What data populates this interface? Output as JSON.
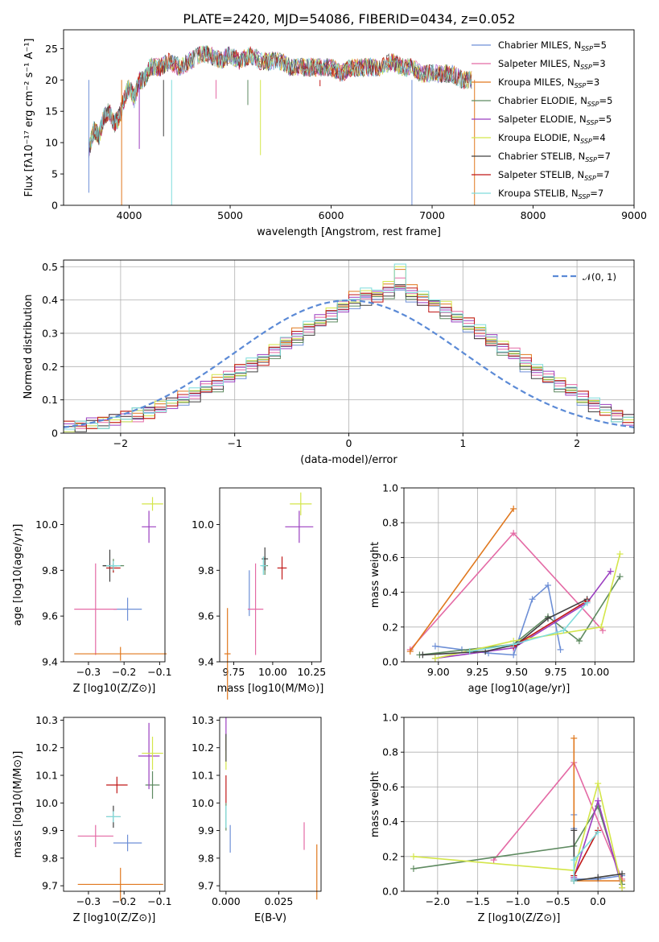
{
  "figure_title": "PLATE=2420, MJD=54086, FIBERID=0434, z=0.052",
  "models": [
    {
      "name": "Chabrier MILES, N_SSP=5",
      "color": "#6d8fd6"
    },
    {
      "name": "Salpeter MILES, N_SSP=3",
      "color": "#e46aa5"
    },
    {
      "name": "Kroupa MILES, N_SSP=3",
      "color": "#e0781e"
    },
    {
      "name": "Chabrier ELODIE, N_SSP=5",
      "color": "#5e8a60"
    },
    {
      "name": "Salpeter ELODIE, N_SSP=5",
      "color": "#9b3fc0"
    },
    {
      "name": "Kroupa ELODIE, N_SSP=4",
      "color": "#d4e64a"
    },
    {
      "name": "Chabrier STELIB, N_SSP=7",
      "color": "#404040"
    },
    {
      "name": "Salpeter STELIB, N_SSP=7",
      "color": "#c01818"
    },
    {
      "name": "Kroupa STELIB, N_SSP=7",
      "color": "#7fdcdc"
    }
  ],
  "chart_data": [
    {
      "type": "line",
      "id": "spectrum",
      "title": "PLATE=2420, MJD=54086, FIBERID=0434, z=0.052",
      "xlabel": "wavelength [Angstrom, rest frame]",
      "ylabel": "Flux [fλ10⁻¹⁷ erg cm⁻² s⁻¹ A⁻¹]",
      "xlim": [
        3350,
        9000
      ],
      "ylim": [
        0,
        28
      ],
      "xticks": [
        4000,
        5000,
        6000,
        7000,
        8000,
        9000
      ],
      "yticks": [
        0,
        5,
        10,
        15,
        20,
        25
      ],
      "grid": false,
      "legend": "upper right",
      "x": [
        3600,
        3650,
        3700,
        3750,
        3800,
        3850,
        3900,
        3950,
        4000,
        4050,
        4100,
        4150,
        4200,
        4300,
        4400,
        4500,
        4600,
        4700,
        4800,
        4900,
        5000,
        5100,
        5200,
        5300,
        5400,
        5500,
        5600,
        5700,
        5800,
        5900,
        6000,
        6100,
        6200,
        6300,
        6400,
        6500,
        6600,
        6700,
        6800,
        6900,
        7000,
        7100,
        7200,
        7300,
        7400
      ],
      "y": [
        9,
        12,
        11,
        14,
        15,
        13,
        14,
        17,
        19,
        17,
        20,
        20,
        22,
        22,
        23,
        22,
        23,
        24,
        24,
        23,
        24,
        23,
        24,
        23,
        23,
        23,
        22,
        22,
        22,
        22,
        22,
        21,
        22,
        22,
        22,
        22,
        23,
        22,
        22,
        21,
        21,
        21,
        21,
        20,
        20
      ],
      "dips": [
        {
          "x": 3600,
          "y": 2
        },
        {
          "x": 3925,
          "y": 0
        },
        {
          "x": 4100,
          "y": 9
        },
        {
          "x": 4340,
          "y": 11
        },
        {
          "x": 4420,
          "y": 0
        },
        {
          "x": 4860,
          "y": 17
        },
        {
          "x": 5175,
          "y": 16
        },
        {
          "x": 5300,
          "y": 8
        },
        {
          "x": 5890,
          "y": 19
        },
        {
          "x": 6800,
          "y": 0
        },
        {
          "x": 7420,
          "y": 0
        }
      ]
    },
    {
      "type": "bar",
      "id": "residuals",
      "xlabel": "(data-model)/error",
      "ylabel": "Normed distribution",
      "xlim": [
        -2.5,
        2.5
      ],
      "ylim": [
        0,
        0.52
      ],
      "xticks": [
        -2,
        -1,
        0,
        1,
        2
      ],
      "yticks": [
        0,
        0.1,
        0.2,
        0.3,
        0.4,
        0.5
      ],
      "grid": true,
      "legend": "upper right",
      "gaussian_label": "𝒩(0, 1)",
      "bin_edges_start": -2.5,
      "bin_width": 0.1,
      "series_values": [
        [
          0.02,
          0.02,
          0.03,
          0.03,
          0.04,
          0.05,
          0.06,
          0.07,
          0.08,
          0.09,
          0.1,
          0.11,
          0.13,
          0.14,
          0.16,
          0.18,
          0.2,
          0.22,
          0.24,
          0.26,
          0.28,
          0.31,
          0.33,
          0.35,
          0.37,
          0.39,
          0.4,
          0.41,
          0.42,
          0.43,
          0.41,
          0.4,
          0.39,
          0.36,
          0.34,
          0.32,
          0.3,
          0.27,
          0.25,
          0.23,
          0.2,
          0.18,
          0.16,
          0.14,
          0.12,
          0.1,
          0.08,
          0.07,
          0.05,
          0.04
        ],
        [
          0.02,
          0.03,
          0.03,
          0.04,
          0.04,
          0.05,
          0.05,
          0.06,
          0.07,
          0.09,
          0.1,
          0.12,
          0.14,
          0.15,
          0.17,
          0.19,
          0.21,
          0.22,
          0.25,
          0.27,
          0.29,
          0.32,
          0.34,
          0.36,
          0.38,
          0.4,
          0.42,
          0.41,
          0.43,
          0.45,
          0.42,
          0.4,
          0.38,
          0.37,
          0.35,
          0.33,
          0.3,
          0.28,
          0.26,
          0.24,
          0.21,
          0.19,
          0.17,
          0.15,
          0.13,
          0.11,
          0.09,
          0.07,
          0.06,
          0.04
        ],
        [
          0.02,
          0.02,
          0.03,
          0.03,
          0.04,
          0.05,
          0.06,
          0.06,
          0.08,
          0.09,
          0.11,
          0.12,
          0.14,
          0.16,
          0.17,
          0.19,
          0.21,
          0.23,
          0.25,
          0.28,
          0.3,
          0.32,
          0.34,
          0.36,
          0.39,
          0.41,
          0.42,
          0.43,
          0.44,
          0.5,
          0.43,
          0.41,
          0.4,
          0.38,
          0.35,
          0.33,
          0.31,
          0.29,
          0.26,
          0.24,
          0.22,
          0.19,
          0.17,
          0.15,
          0.13,
          0.11,
          0.09,
          0.07,
          0.05,
          0.04
        ]
      ],
      "gaussian": {
        "mean": 0,
        "sigma": 1
      }
    },
    {
      "type": "scatter",
      "id": "age_vs_Z",
      "errorbars": true,
      "xlabel": "Z [log10(Z/Z⊙)]",
      "ylabel": "age  [log10(age/yr)]",
      "xlim": [
        -0.37,
        -0.085
      ],
      "ylim": [
        9.4,
        10.16
      ],
      "xticks": [
        -0.3,
        -0.2,
        -0.1
      ],
      "yticks": [
        9.4,
        9.6,
        9.8,
        10.0
      ],
      "points": [
        {
          "model": 0,
          "x": -0.19,
          "y": 9.63,
          "xerr": 0.04,
          "yerr": 0.05
        },
        {
          "model": 1,
          "x": -0.28,
          "y": 9.63,
          "xerr": 0.06,
          "yerr": 0.2
        },
        {
          "model": 2,
          "x": -0.21,
          "y": 9.435,
          "xerr": 0.13,
          "yerr": 0.03
        },
        {
          "model": 3,
          "x": -0.23,
          "y": 9.82,
          "xerr": 0.03,
          "yerr": 0.03
        },
        {
          "model": 4,
          "x": -0.13,
          "y": 9.99,
          "xerr": 0.02,
          "yerr": 0.07
        },
        {
          "model": 5,
          "x": -0.12,
          "y": 10.09,
          "xerr": 0.03,
          "yerr": 0.03
        },
        {
          "model": 6,
          "x": -0.24,
          "y": 9.82,
          "xerr": 0.02,
          "yerr": 0.07
        },
        {
          "model": 7,
          "x": -0.23,
          "y": 9.81,
          "xerr": 0.02,
          "yerr": 0.02
        },
        {
          "model": 8,
          "x": -0.23,
          "y": 9.82,
          "xerr": 0.02,
          "yerr": 0.02
        }
      ]
    },
    {
      "type": "scatter",
      "id": "age_vs_mass",
      "errorbars": true,
      "xlabel": "mass [log10(M/M⊙)]",
      "ylabel": "",
      "xlim": [
        9.66,
        10.31
      ],
      "ylim": [
        9.4,
        10.16
      ],
      "xticks": [
        9.75,
        10.0,
        10.25
      ],
      "yticks": [
        9.4,
        9.6,
        9.8,
        10.0
      ],
      "points": [
        {
          "model": 0,
          "x": 9.85,
          "y": 9.7,
          "xerr": 0.0,
          "yerr": 0.1
        },
        {
          "model": 1,
          "x": 9.89,
          "y": 9.63,
          "xerr": 0.05,
          "yerr": 0.2
        },
        {
          "model": 2,
          "x": 9.71,
          "y": 9.435,
          "xerr": 0.02,
          "yerr": 0.2
        },
        {
          "model": 3,
          "x": 9.95,
          "y": 9.82,
          "xerr": 0.02,
          "yerr": 0.04
        },
        {
          "model": 4,
          "x": 10.17,
          "y": 9.99,
          "xerr": 0.09,
          "yerr": 0.07
        },
        {
          "model": 5,
          "x": 10.18,
          "y": 10.09,
          "xerr": 0.07,
          "yerr": 0.05
        },
        {
          "model": 6,
          "x": 9.95,
          "y": 9.85,
          "xerr": 0.02,
          "yerr": 0.05
        },
        {
          "model": 7,
          "x": 10.06,
          "y": 9.81,
          "xerr": 0.03,
          "yerr": 0.05
        },
        {
          "model": 8,
          "x": 9.94,
          "y": 9.82,
          "xerr": 0.02,
          "yerr": 0.04
        }
      ]
    },
    {
      "type": "line",
      "id": "mass_weight_vs_age",
      "xlabel": "age  [log10(age/yr)]",
      "ylabel": "mass weight",
      "xlim": [
        8.78,
        10.25
      ],
      "ylim": [
        0,
        1
      ],
      "xticks": [
        9.0,
        9.25,
        9.5,
        9.75,
        10.0
      ],
      "yticks": [
        0,
        0.2,
        0.4,
        0.6,
        0.8,
        1.0
      ],
      "grid": true,
      "series": [
        {
          "model": 0,
          "x": [
            8.98,
            9.15,
            9.32,
            9.48,
            9.6,
            9.7,
            9.78
          ],
          "y": [
            0.09,
            0.07,
            0.05,
            0.04,
            0.36,
            0.44,
            0.07
          ]
        },
        {
          "model": 1,
          "x": [
            8.82,
            9.48,
            10.05
          ],
          "y": [
            0.07,
            0.74,
            0.18
          ]
        },
        {
          "model": 2,
          "x": [
            8.82,
            9.48
          ],
          "y": [
            0.06,
            0.88
          ]
        },
        {
          "model": 3,
          "x": [
            8.88,
            9.48,
            9.7,
            9.9,
            10.16
          ],
          "y": [
            0.04,
            0.1,
            0.26,
            0.12,
            0.49
          ]
        },
        {
          "model": 4,
          "x": [
            8.98,
            9.48,
            9.95,
            10.1
          ],
          "y": [
            0.02,
            0.08,
            0.34,
            0.52
          ]
        },
        {
          "model": 5,
          "x": [
            8.98,
            9.48,
            10.04,
            10.16
          ],
          "y": [
            0.02,
            0.12,
            0.2,
            0.62
          ]
        },
        {
          "model": 6,
          "x": [
            8.9,
            9.3,
            9.5,
            9.7,
            9.95
          ],
          "y": [
            0.04,
            0.06,
            0.1,
            0.25,
            0.36
          ]
        },
        {
          "model": 7,
          "x": [
            9.48,
            9.95
          ],
          "y": [
            0.09,
            0.35
          ]
        },
        {
          "model": 8,
          "x": [
            9.2,
            9.48,
            9.8,
            9.95
          ],
          "y": [
            0.06,
            0.1,
            0.18,
            0.34
          ]
        }
      ]
    },
    {
      "type": "scatter",
      "id": "mass_vs_Z",
      "errorbars": true,
      "xlabel": "Z [log10(Z/Z⊙)]",
      "ylabel": "mass [log10(M/M⊙)]",
      "xlim": [
        -0.37,
        -0.085
      ],
      "ylim": [
        9.68,
        10.31
      ],
      "xticks": [
        -0.3,
        -0.2,
        -0.1
      ],
      "yticks": [
        9.7,
        9.8,
        9.9,
        10.0,
        10.1,
        10.2,
        10.3
      ],
      "points": [
        {
          "model": 0,
          "x": -0.19,
          "y": 9.855,
          "xerr": 0.04,
          "yerr": 0.03
        },
        {
          "model": 1,
          "x": -0.28,
          "y": 9.88,
          "xerr": 0.05,
          "yerr": 0.04
        },
        {
          "model": 2,
          "x": -0.21,
          "y": 9.705,
          "xerr": 0.12,
          "yerr": 0.06
        },
        {
          "model": 3,
          "x": -0.12,
          "y": 10.065,
          "xerr": 0.02,
          "yerr": 0.05
        },
        {
          "model": 4,
          "x": -0.13,
          "y": 10.17,
          "xerr": 0.03,
          "yerr": 0.12
        },
        {
          "model": 5,
          "x": -0.12,
          "y": 10.18,
          "xerr": 0.03,
          "yerr": 0.06
        },
        {
          "model": 6,
          "x": -0.23,
          "y": 9.95,
          "xerr": 0.02,
          "yerr": 0.04
        },
        {
          "model": 7,
          "x": -0.22,
          "y": 10.065,
          "xerr": 0.03,
          "yerr": 0.03
        },
        {
          "model": 8,
          "x": -0.23,
          "y": 9.95,
          "xerr": 0.02,
          "yerr": 0.02
        }
      ]
    },
    {
      "type": "scatter",
      "id": "mass_vs_ebv",
      "errorbars": true,
      "xlabel": "E(B-V)",
      "ylabel": "",
      "xlim": [
        -0.003,
        0.045
      ],
      "ylim": [
        9.68,
        10.31
      ],
      "xticks": [
        0.0,
        0.025
      ],
      "yticks": [
        9.7,
        9.8,
        9.9,
        10.0,
        10.1,
        10.2,
        10.3
      ],
      "points": [
        {
          "model": 0,
          "x": 0.002,
          "y": 9.87,
          "xerr": 0,
          "yerr": 0.05
        },
        {
          "model": 1,
          "x": 0.037,
          "y": 9.88,
          "xerr": 0,
          "yerr": 0.05
        },
        {
          "model": 2,
          "x": 0.043,
          "y": 9.75,
          "xerr": 0,
          "yerr": 0.1
        },
        {
          "model": 3,
          "x": 0.0,
          "y": 9.95,
          "xerr": 0,
          "yerr": 0.05
        },
        {
          "model": 4,
          "x": 0.0,
          "y": 10.25,
          "xerr": 0,
          "yerr": 0.06
        },
        {
          "model": 5,
          "x": 0.0,
          "y": 10.18,
          "xerr": 0,
          "yerr": 0.06
        },
        {
          "model": 6,
          "x": 0.0,
          "y": 10.2,
          "xerr": 0,
          "yerr": 0.05
        },
        {
          "model": 7,
          "x": 0.0,
          "y": 10.05,
          "xerr": 0,
          "yerr": 0.05
        },
        {
          "model": 8,
          "x": 0.0,
          "y": 9.95,
          "xerr": 0,
          "yerr": 0.04
        }
      ]
    },
    {
      "type": "line",
      "id": "mass_weight_vs_Z",
      "xlabel": "Z [log10(Z/Z⊙)]",
      "ylabel": "mass weight",
      "xlim": [
        -2.42,
        0.45
      ],
      "ylim": [
        0,
        1
      ],
      "xticks": [
        -2.0,
        -1.5,
        -1.0,
        -0.5,
        0.0
      ],
      "yticks": [
        0,
        0.2,
        0.4,
        0.6,
        0.8,
        1.0
      ],
      "grid": true,
      "series": [
        {
          "model": 0,
          "x": [
            -0.3,
            -0.3,
            -0.3,
            0.0,
            0.3
          ],
          "y": [
            0.44,
            0.36,
            0.07,
            0.07,
            0.09
          ]
        },
        {
          "model": 1,
          "x": [
            -1.3,
            -0.3,
            0.3
          ],
          "y": [
            0.18,
            0.74,
            0.07
          ]
        },
        {
          "model": 2,
          "x": [
            -0.3,
            -0.3,
            0.3
          ],
          "y": [
            0.88,
            0.06,
            0.06
          ]
        },
        {
          "model": 3,
          "x": [
            -2.3,
            -0.3,
            0.0,
            0.3
          ],
          "y": [
            0.13,
            0.26,
            0.49,
            0.04
          ]
        },
        {
          "model": 4,
          "x": [
            -0.3,
            0.0,
            0.3
          ],
          "y": [
            0.08,
            0.52,
            0.02
          ]
        },
        {
          "model": 5,
          "x": [
            -2.3,
            -0.3,
            0.0,
            0.3
          ],
          "y": [
            0.2,
            0.12,
            0.62,
            0.02
          ]
        },
        {
          "model": 6,
          "x": [
            -0.3,
            -0.3,
            0.0,
            0.3
          ],
          "y": [
            0.35,
            0.06,
            0.08,
            0.1
          ]
        },
        {
          "model": 7,
          "x": [
            -0.3,
            0.0
          ],
          "y": [
            0.09,
            0.35
          ]
        },
        {
          "model": 8,
          "x": [
            -0.3,
            -0.3,
            0.0
          ],
          "y": [
            0.06,
            0.18,
            0.34
          ]
        }
      ]
    }
  ]
}
